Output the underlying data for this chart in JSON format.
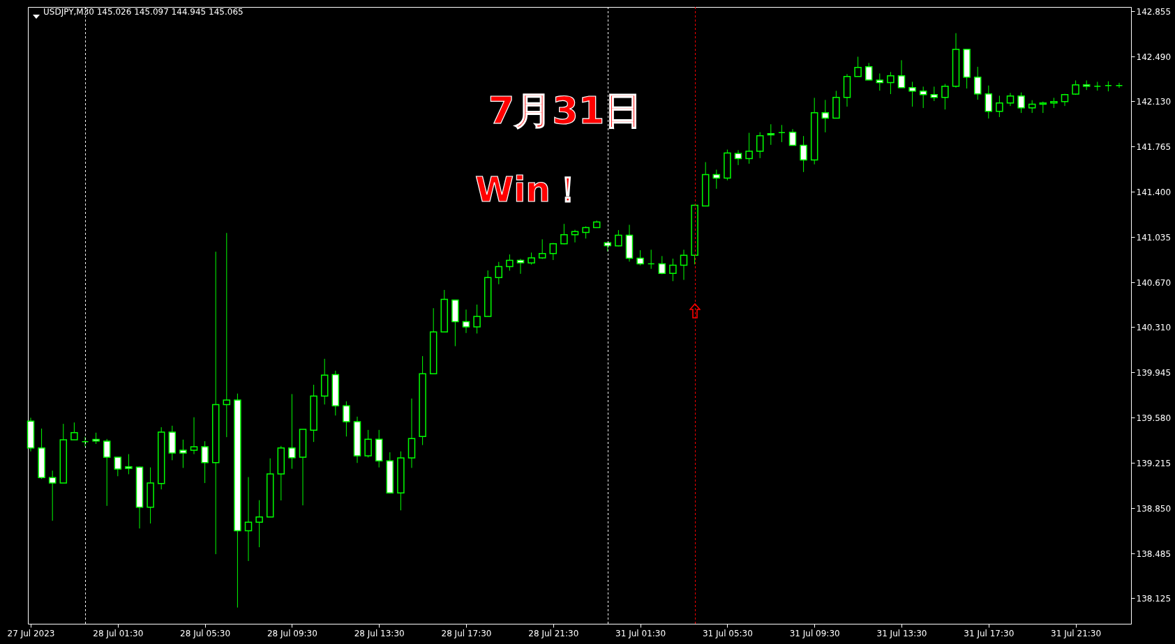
{
  "chart_data": {
    "type": "candlestick",
    "title": "USDJPY,M30 145.026 145.097 144.945 145.065",
    "annotations": [
      "7月31日",
      "Win！"
    ],
    "color": "#00ff00",
    "categories": [
      "27 Jul 2023",
      null,
      null,
      null,
      null,
      null,
      null,
      null,
      "28 Jul 01:30",
      null,
      null,
      null,
      null,
      null,
      null,
      null,
      "28 Jul 05:30",
      null,
      null,
      null,
      null,
      null,
      null,
      null,
      "28 Jul 09:30",
      null,
      null,
      null,
      null,
      null,
      null,
      null,
      "28 Jul 13:30",
      null,
      null,
      null,
      null,
      null,
      null,
      null,
      "28 Jul 17:30",
      null,
      null,
      null,
      null,
      null,
      null,
      null,
      "28 Jul 21:30",
      null,
      null,
      null,
      null,
      null,
      null,
      null,
      "31 Jul 01:30",
      null,
      null,
      null,
      null,
      null,
      null,
      null,
      "31 Jul 05:30",
      null,
      null,
      null,
      null,
      null,
      null,
      null,
      "31 Jul 09:30",
      null,
      null,
      null,
      null,
      null,
      null,
      null,
      "31 Jul 13:30",
      null,
      null,
      null,
      null,
      null,
      null,
      null,
      "31 Jul 17:30",
      null,
      null,
      null,
      null,
      null,
      null,
      null,
      "31 Jul 21:30",
      null,
      null,
      null,
      null
    ],
    "ohlc": [
      [
        139.553,
        139.58,
        139.309,
        139.336
      ],
      [
        139.336,
        139.493,
        139.087,
        139.098
      ],
      [
        139.098,
        139.154,
        138.75,
        139.054
      ],
      [
        139.054,
        139.531,
        139.054,
        139.402
      ],
      [
        139.402,
        139.542,
        139.402,
        139.46
      ],
      [
        139.387,
        139.427,
        139.349,
        139.387
      ],
      [
        139.405,
        139.46,
        139.369,
        139.393
      ],
      [
        139.391,
        139.409,
        138.87,
        139.262
      ],
      [
        139.262,
        139.262,
        139.109,
        139.167
      ],
      [
        139.185,
        139.287,
        139.125,
        139.172
      ],
      [
        139.182,
        139.187,
        138.688,
        138.859
      ],
      [
        138.859,
        139.18,
        138.728,
        139.054
      ],
      [
        139.05,
        139.504,
        139.003,
        139.464
      ],
      [
        139.464,
        139.516,
        139.238,
        139.296
      ],
      [
        139.318,
        139.404,
        139.176,
        139.296
      ],
      [
        139.318,
        139.584,
        139.287,
        139.347
      ],
      [
        139.347,
        139.391,
        139.054,
        139.218
      ],
      [
        139.218,
        140.918,
        138.481,
        139.686
      ],
      [
        139.686,
        141.069,
        139.424,
        139.722
      ],
      [
        139.722,
        139.775,
        138.051,
        138.67
      ],
      [
        138.67,
        139.102,
        138.426,
        138.739
      ],
      [
        138.739,
        138.916,
        138.537,
        138.781
      ],
      [
        138.781,
        139.253,
        138.781,
        139.127
      ],
      [
        139.127,
        139.353,
        138.914,
        139.336
      ],
      [
        139.336,
        139.771,
        139.169,
        139.258
      ],
      [
        139.262,
        139.487,
        138.874,
        139.487
      ],
      [
        139.48,
        139.846,
        139.385,
        139.755
      ],
      [
        139.755,
        140.055,
        139.687,
        139.924
      ],
      [
        139.928,
        139.959,
        139.598,
        139.677
      ],
      [
        139.677,
        139.713,
        139.429,
        139.549
      ],
      [
        139.549,
        139.589,
        139.216,
        139.273
      ],
      [
        139.273,
        139.482,
        139.26,
        139.407
      ],
      [
        139.407,
        139.482,
        139.18,
        139.233
      ],
      [
        139.233,
        139.302,
        138.969,
        138.974
      ],
      [
        138.974,
        139.309,
        138.834,
        139.256
      ],
      [
        139.256,
        139.735,
        139.176,
        139.413
      ],
      [
        139.429,
        140.077,
        139.36,
        139.935
      ],
      [
        139.935,
        140.463,
        139.935,
        140.272
      ],
      [
        140.272,
        140.61,
        140.268,
        140.534
      ],
      [
        140.529,
        140.529,
        140.157,
        140.354
      ],
      [
        140.354,
        140.452,
        140.263,
        140.312
      ],
      [
        140.312,
        140.492,
        140.259,
        140.396
      ],
      [
        140.396,
        140.767,
        140.396,
        140.709
      ],
      [
        140.709,
        140.836,
        140.656,
        140.798
      ],
      [
        140.798,
        140.896,
        140.765,
        140.849
      ],
      [
        140.849,
        140.86,
        140.74,
        140.829
      ],
      [
        140.827,
        140.911,
        140.814,
        140.869
      ],
      [
        140.869,
        141.018,
        140.86,
        140.904
      ],
      [
        140.904,
        140.989,
        140.851,
        140.982
      ],
      [
        140.982,
        141.142,
        140.978,
        141.055
      ],
      [
        141.055,
        141.095,
        140.993,
        141.08
      ],
      [
        141.073,
        141.122,
        141.024,
        141.113
      ],
      [
        141.113,
        141.169,
        141.113,
        141.157
      ],
      [
        140.99,
        140.99,
        140.921,
        140.967
      ],
      [
        140.965,
        141.092,
        140.962,
        141.051
      ],
      [
        141.051,
        141.135,
        140.838,
        140.866
      ],
      [
        140.866,
        140.93,
        140.808,
        140.821
      ],
      [
        140.821,
        140.934,
        140.78,
        140.821
      ],
      [
        140.821,
        140.883,
        140.737,
        140.743
      ],
      [
        140.743,
        140.862,
        140.681,
        140.81
      ],
      [
        140.81,
        140.934,
        140.691,
        140.889
      ],
      [
        140.889,
        141.298,
        140.816,
        141.292
      ],
      [
        141.287,
        141.64,
        141.287,
        141.539
      ],
      [
        141.539,
        141.579,
        141.425,
        141.511
      ],
      [
        141.511,
        141.741,
        141.493,
        141.713
      ],
      [
        141.709,
        141.736,
        141.616,
        141.668
      ],
      [
        141.668,
        141.876,
        141.627,
        141.728
      ],
      [
        141.728,
        141.881,
        141.672,
        141.853
      ],
      [
        141.87,
        141.945,
        141.779,
        141.859
      ],
      [
        141.878,
        141.939,
        141.801,
        141.878
      ],
      [
        141.881,
        141.906,
        141.775,
        141.775
      ],
      [
        141.775,
        141.85,
        141.56,
        141.657
      ],
      [
        141.657,
        142.158,
        141.622,
        142.038
      ],
      [
        142.038,
        142.141,
        141.88,
        141.994
      ],
      [
        141.994,
        142.214,
        141.994,
        142.162
      ],
      [
        142.162,
        142.349,
        142.087,
        142.33
      ],
      [
        142.33,
        142.489,
        142.33,
        142.403
      ],
      [
        142.409,
        142.439,
        142.302,
        142.302
      ],
      [
        142.3,
        142.354,
        142.216,
        142.28
      ],
      [
        142.28,
        142.366,
        142.188,
        142.336
      ],
      [
        142.335,
        142.461,
        142.24,
        142.24
      ],
      [
        142.24,
        142.287,
        142.087,
        142.212
      ],
      [
        142.212,
        142.248,
        142.076,
        142.184
      ],
      [
        142.184,
        142.248,
        142.132,
        142.162
      ],
      [
        142.162,
        142.27,
        142.064,
        142.251
      ],
      [
        142.251,
        142.679,
        142.24,
        142.549
      ],
      [
        142.549,
        142.549,
        142.233,
        142.324
      ],
      [
        142.324,
        142.408,
        142.143,
        142.19
      ],
      [
        142.19,
        142.257,
        141.991,
        142.049
      ],
      [
        142.049,
        142.175,
        142.003,
        142.117
      ],
      [
        142.117,
        142.197,
        142.092,
        142.173
      ],
      [
        142.173,
        142.201,
        142.036,
        142.077
      ],
      [
        142.077,
        142.139,
        142.036,
        142.106
      ],
      [
        142.106,
        142.128,
        142.036,
        142.117
      ],
      [
        142.117,
        142.158,
        142.076,
        142.128
      ],
      [
        142.128,
        142.19,
        142.092,
        142.184
      ],
      [
        142.188,
        142.298,
        142.182,
        142.262
      ],
      [
        142.263,
        142.298,
        142.221,
        142.251
      ],
      [
        142.251,
        142.287,
        142.216,
        142.251
      ],
      [
        142.257,
        142.291,
        142.21,
        142.257
      ],
      [
        142.257,
        142.279,
        142.238,
        142.257
      ]
    ],
    "ylim": [
      137.92,
      142.89
    ],
    "yticks": [
      138.125,
      138.485,
      {
        "value": 138.85,
        "label": "138.850"
      },
      139.215,
      {
        "value": 139.58,
        "label": "139.580"
      },
      139.945,
      {
        "value": 140.31,
        "label": "140.310"
      },
      {
        "value": 140.67,
        "label": "140.670"
      },
      141.035,
      {
        "value": 141.4,
        "label": "141.400"
      },
      141.765,
      {
        "value": 142.13,
        "label": "142.130"
      },
      {
        "value": 142.49,
        "label": "142.490"
      },
      142.855
    ]
  }
}
